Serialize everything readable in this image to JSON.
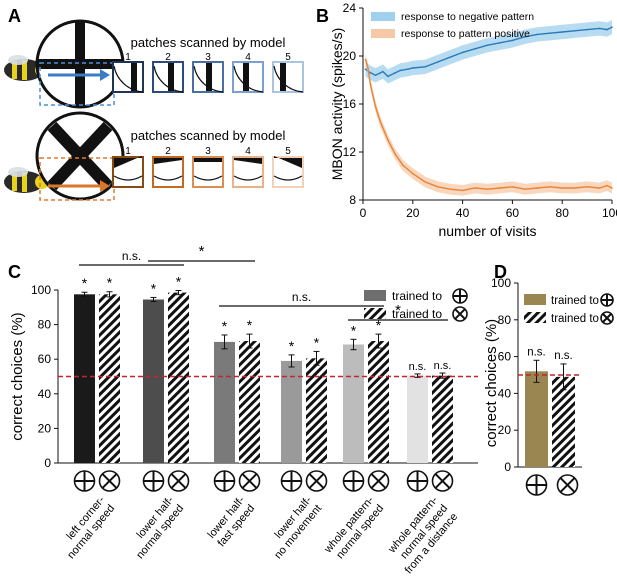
{
  "panels": {
    "a": "A",
    "b": "B",
    "c": "C",
    "d": "D"
  },
  "panel_a": {
    "title_top": "patches scanned by model",
    "title_bottom": "patches scanned by model",
    "patch_numbers": [
      "1",
      "2",
      "3",
      "4",
      "5"
    ],
    "colors": {
      "plus_patches": [
        "#1f3557",
        "#2c4c7e",
        "#4a6fa5",
        "#7b9fce",
        "#a9c3e3"
      ],
      "x_patches": [
        "#8a4a14",
        "#c06a28",
        "#dc8e50",
        "#e9b388",
        "#f2d1b6"
      ],
      "dashed_blue": "#4a90d9",
      "dashed_orange": "#e07b2e",
      "arrow_blue": "#3b7dc4",
      "arrow_orange": "#d9772b"
    }
  },
  "chart_data": [
    {
      "panel": "B",
      "type": "line",
      "xlabel": "number of visits",
      "ylabel": "MBON activity (spikes/s)",
      "xlim": [
        0,
        100
      ],
      "ylim": [
        8,
        24
      ],
      "xticks": [
        0,
        20,
        40,
        60,
        80,
        100
      ],
      "yticks": [
        8,
        12,
        16,
        20,
        24
      ],
      "series": [
        {
          "name": "response to negative pattern",
          "color": "#2a7ab8",
          "band_color": "#9fd0ee",
          "x": [
            1,
            3,
            5,
            8,
            10,
            13,
            15,
            18,
            20,
            25,
            30,
            35,
            40,
            45,
            50,
            55,
            60,
            65,
            70,
            75,
            80,
            85,
            90,
            95,
            98,
            100
          ],
          "y": [
            18.9,
            18.6,
            18.4,
            18.7,
            18.3,
            18.6,
            18.8,
            18.9,
            19.0,
            19.1,
            19.5,
            19.9,
            20.3,
            20.6,
            20.9,
            21.1,
            21.3,
            21.6,
            21.8,
            21.9,
            22.0,
            22.1,
            22.2,
            22.3,
            22.2,
            22.4
          ],
          "err": 0.6
        },
        {
          "name": "response to pattern positive",
          "color": "#e8843a",
          "band_color": "#f6c9a6",
          "x": [
            1,
            2,
            3,
            5,
            7,
            10,
            13,
            16,
            20,
            25,
            30,
            35,
            40,
            45,
            50,
            55,
            60,
            65,
            70,
            75,
            80,
            85,
            90,
            95,
            98,
            100
          ],
          "y": [
            19.7,
            19.0,
            17.6,
            15.8,
            14.5,
            13.0,
            11.8,
            10.9,
            10.2,
            9.5,
            9.1,
            8.9,
            8.8,
            9.0,
            8.9,
            9.0,
            9.1,
            8.9,
            9.0,
            9.1,
            9.0,
            9.0,
            9.1,
            9.0,
            9.2,
            9.0
          ],
          "err": 0.45
        }
      ]
    },
    {
      "panel": "C",
      "type": "bar",
      "ylabel": "correct choices (%)",
      "ylim": [
        0,
        100
      ],
      "yticks": [
        0,
        20,
        40,
        60,
        80,
        100
      ],
      "chance_level": 50,
      "legend": [
        "trained to",
        "trained to"
      ],
      "legend_icons": [
        "plus",
        "x"
      ],
      "categories": [
        [
          "left corner-",
          "normal speed"
        ],
        [
          "lower half-",
          "normal speed"
        ],
        [
          "lower half-",
          "fast speed"
        ],
        [
          "lower half-",
          "no movement"
        ],
        [
          "whole pattern-",
          "normal speed"
        ],
        [
          "whole pattern-",
          "normal speed",
          "from a distance"
        ]
      ],
      "colors": [
        "#1a1a1a",
        "#4d4d4d",
        "#7a7a7a",
        "#9a9a9a",
        "#bcbcbc",
        "#e2e2e2"
      ],
      "series": [
        {
          "name": "trained to plus",
          "values": [
            97.5,
            94.5,
            70,
            59,
            68.5,
            50.5
          ],
          "errors": [
            1.2,
            1.2,
            4,
            3.5,
            3,
            1
          ],
          "labels": [
            "*",
            "*",
            "*",
            "*",
            "*",
            "n.s."
          ]
        },
        {
          "name": "trained to cross",
          "values": [
            97.5,
            98.5,
            70.5,
            60.5,
            70.5,
            50.5
          ],
          "errors": [
            1.5,
            1.2,
            4,
            4,
            4,
            1.5
          ],
          "labels": [
            "*",
            "*",
            "*",
            "*",
            "*",
            "n.s."
          ]
        }
      ],
      "comparisons": [
        {
          "label": "n.s.",
          "from": 0,
          "to": 1
        },
        {
          "label": "*",
          "from": 1,
          "to": 2
        },
        {
          "label": "n.s.",
          "from": 2,
          "to": 4
        },
        {
          "label": "*",
          "from": 4,
          "to": 5
        }
      ]
    },
    {
      "panel": "D",
      "type": "bar",
      "ylabel": "correct choices (%)",
      "ylim": [
        0,
        100
      ],
      "yticks": [
        0,
        20,
        40,
        60,
        80,
        100
      ],
      "chance_level": 50,
      "legend": [
        "trained to",
        "trained to"
      ],
      "legend_icons": [
        "plus",
        "x"
      ],
      "color": "#9a8650",
      "series": [
        {
          "name": "trained to plus",
          "value": 52,
          "error": 6,
          "label": "n.s."
        },
        {
          "name": "trained to cross",
          "value": 49,
          "error": 7,
          "label": "n.s."
        }
      ]
    }
  ]
}
